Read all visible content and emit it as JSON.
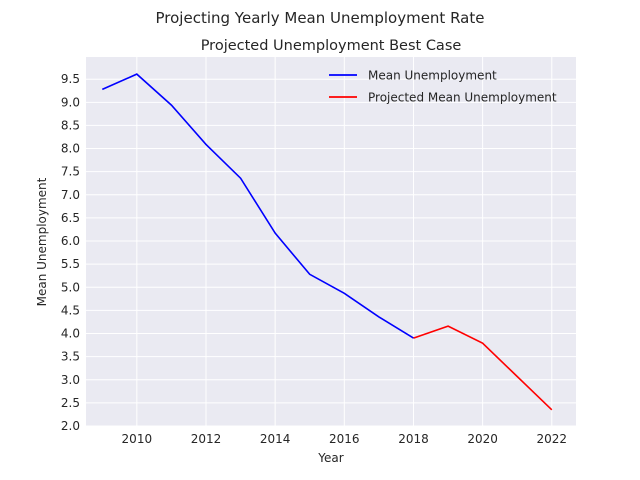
{
  "chart_data": {
    "type": "line",
    "suptitle": "Projecting Yearly Mean Unemployment Rate",
    "title": "Projected Unemployment Best Case",
    "xlabel": "Year",
    "ylabel": "Mean Unemployment",
    "xlim": [
      2008.53,
      2022.7
    ],
    "ylim": [
      2.0,
      9.98
    ],
    "xticks": [
      2010,
      2012,
      2014,
      2016,
      2018,
      2020,
      2022
    ],
    "yticks": [
      "2.0",
      "2.5",
      "3.0",
      "3.5",
      "4.0",
      "4.5",
      "5.0",
      "5.5",
      "6.0",
      "6.5",
      "7.0",
      "7.5",
      "8.0",
      "8.5",
      "9.0",
      "9.5"
    ],
    "grid": true,
    "legend_position": "top-right",
    "series": [
      {
        "name": "Mean Unemployment",
        "color": "#0000ff",
        "x": [
          2009,
          2010,
          2011,
          2012,
          2013,
          2014,
          2015,
          2016,
          2017,
          2018
        ],
        "y": [
          9.28,
          9.61,
          8.94,
          8.09,
          7.36,
          6.17,
          5.28,
          4.87,
          4.36,
          3.9
        ]
      },
      {
        "name": "Projected Mean Unemployment",
        "color": "#ff0000",
        "x": [
          2018,
          2019,
          2020,
          2021,
          2022
        ],
        "y": [
          3.9,
          4.16,
          3.79,
          3.07,
          2.35
        ]
      }
    ]
  }
}
